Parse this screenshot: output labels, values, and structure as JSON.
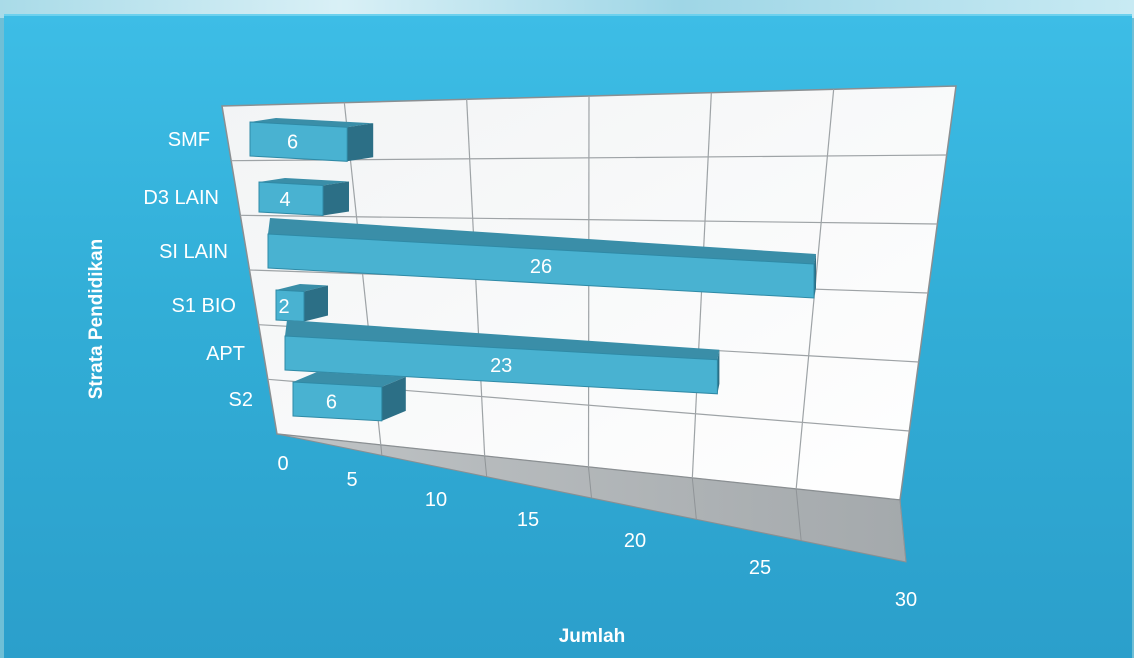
{
  "chart_data": {
    "type": "bar",
    "orientation": "horizontal",
    "three_d": true,
    "categories": [
      "SMF",
      "D3 LAIN",
      "SI LAIN",
      "S1 BIO",
      "APT",
      "S2"
    ],
    "values": [
      6,
      4,
      26,
      2,
      23,
      6
    ],
    "data_labels": [
      "6",
      "4",
      "26",
      "2",
      "23",
      "6"
    ],
    "xlabel": "Jumlah",
    "ylabel": "Strata Pendidikan",
    "xticks": [
      "0",
      "5",
      "10",
      "15",
      "20",
      "25",
      "30"
    ],
    "xlim": [
      0,
      30
    ],
    "grid": true,
    "legend": "none",
    "colors": {
      "bar_front": "#49b2d1",
      "bar_top": "#3a8ea8",
      "bar_side": "#2c6f86",
      "wall": "#ffffff",
      "floor": "#a9aeb1",
      "background": "#33b2dc",
      "text": "#ffffff"
    }
  }
}
